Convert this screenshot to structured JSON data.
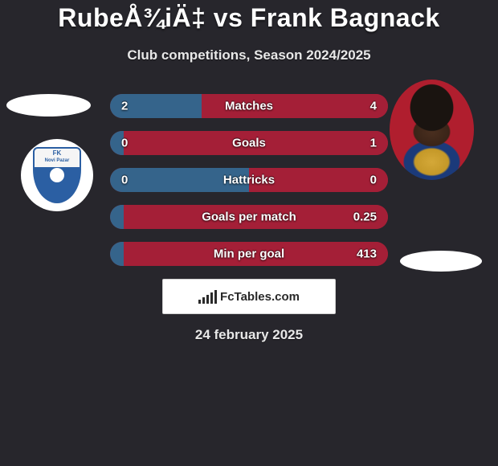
{
  "header": {
    "title": "RubeÅ¾iÄ‡ vs Frank Bagnack",
    "subtitle": "Club competitions, Season 2024/2025"
  },
  "players": {
    "left": {
      "name": "RubeÅ¾iÄ‡",
      "club_name_top": "FK",
      "club_name_bottom": "Novi Pazar"
    },
    "right": {
      "name": "Frank Bagnack"
    }
  },
  "stats": [
    {
      "label": "Matches",
      "left_val": "2",
      "right_val": "4",
      "left_pct": 33,
      "right_pct": 67
    },
    {
      "label": "Goals",
      "left_val": "0",
      "right_val": "1",
      "left_pct": 5,
      "right_pct": 95
    },
    {
      "label": "Hattricks",
      "left_val": "0",
      "right_val": "0",
      "left_pct": 50,
      "right_pct": 50
    },
    {
      "label": "Goals per match",
      "left_val": "",
      "right_val": "0.25",
      "left_pct": 5,
      "right_pct": 95
    },
    {
      "label": "Min per goal",
      "left_val": "",
      "right_val": "413",
      "left_pct": 5,
      "right_pct": 95
    }
  ],
  "colors": {
    "background": "#27262c",
    "bar_left": "#35648b",
    "bar_right": "#a41f37",
    "text": "#ffffff",
    "subtle_text": "#e8e8e8",
    "promo_bg": "#ffffff",
    "promo_text": "#2a2a2a",
    "club_blue": "#2b5fa3"
  },
  "promo": {
    "text": "FcTables.com"
  },
  "date": "24 february 2025"
}
